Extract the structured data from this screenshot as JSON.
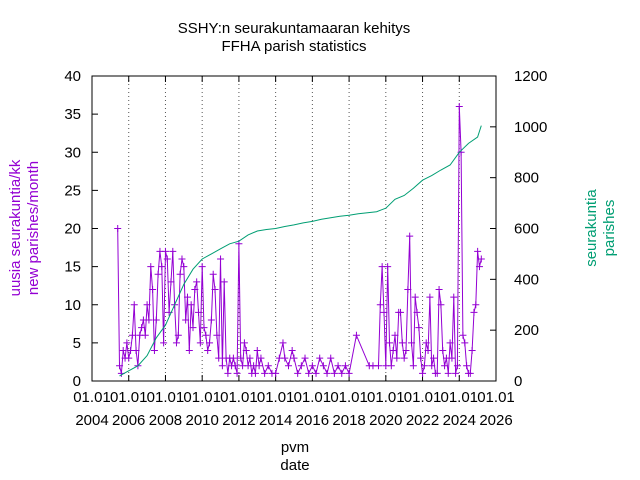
{
  "chart_data": {
    "type": "line",
    "title": "SSHY:n seurakuntamaaran kehitys",
    "subtitle": "FFHA parish statistics",
    "xlabel": [
      "pvm",
      "date"
    ],
    "ylabel_left": [
      "uusia seurakuntia/kk",
      "new parishes/month"
    ],
    "ylabel_right": [
      "seurakuntia",
      "parishes"
    ],
    "xlim": [
      2004.0,
      2026.0
    ],
    "ylim_left": [
      0,
      40
    ],
    "ylim_right": [
      0,
      1200
    ],
    "grid": "vertical dotted lines at major x ticks",
    "x_ticks": [
      {
        "x": 2004,
        "line1": "01.01",
        "line2": "2004"
      },
      {
        "x": 2006,
        "line1": "01.01",
        "line2": "2006"
      },
      {
        "x": 2008,
        "line1": "01.01",
        "line2": "2008"
      },
      {
        "x": 2010,
        "line1": "01.01",
        "line2": "2010"
      },
      {
        "x": 2012,
        "line1": "01.01",
        "line2": "2012"
      },
      {
        "x": 2014,
        "line1": "01.01",
        "line2": "2014"
      },
      {
        "x": 2016,
        "line1": "01.01",
        "line2": "2016"
      },
      {
        "x": 2018,
        "line1": "01.01",
        "line2": "2018"
      },
      {
        "x": 2020,
        "line1": "01.01",
        "line2": "2020"
      },
      {
        "x": 2022,
        "line1": "01.01",
        "line2": "2022"
      },
      {
        "x": 2024,
        "line1": "01.01",
        "line2": "2024"
      },
      {
        "x": 2026,
        "line1": "01.01",
        "line2": "2026"
      }
    ],
    "y_ticks_left": [
      0,
      5,
      10,
      15,
      20,
      25,
      30,
      35,
      40
    ],
    "y_ticks_right": [
      0,
      200,
      400,
      600,
      800,
      1000,
      1200
    ],
    "series": [
      {
        "axis": "left",
        "color": "#9400d3",
        "marker": "plus",
        "values": [
          [
            2005.4,
            20
          ],
          [
            2005.5,
            2
          ],
          [
            2005.6,
            1
          ],
          [
            2005.7,
            4
          ],
          [
            2005.8,
            3
          ],
          [
            2005.9,
            5
          ],
          [
            2006.0,
            3
          ],
          [
            2006.1,
            4
          ],
          [
            2006.2,
            6
          ],
          [
            2006.3,
            10
          ],
          [
            2006.4,
            4
          ],
          [
            2006.5,
            2
          ],
          [
            2006.6,
            6
          ],
          [
            2006.7,
            7
          ],
          [
            2006.8,
            8
          ],
          [
            2006.9,
            6
          ],
          [
            2007.0,
            10
          ],
          [
            2007.1,
            8
          ],
          [
            2007.2,
            15
          ],
          [
            2007.3,
            12
          ],
          [
            2007.4,
            4
          ],
          [
            2007.5,
            8
          ],
          [
            2007.6,
            14
          ],
          [
            2007.7,
            17
          ],
          [
            2007.8,
            15
          ],
          [
            2007.9,
            5
          ],
          [
            2008.0,
            17
          ],
          [
            2008.1,
            16
          ],
          [
            2008.2,
            9
          ],
          [
            2008.3,
            13
          ],
          [
            2008.4,
            17
          ],
          [
            2008.5,
            10
          ],
          [
            2008.6,
            5
          ],
          [
            2008.7,
            6
          ],
          [
            2008.8,
            14
          ],
          [
            2008.9,
            16
          ],
          [
            2009.0,
            15
          ],
          [
            2009.1,
            8
          ],
          [
            2009.2,
            11
          ],
          [
            2009.3,
            4
          ],
          [
            2009.4,
            10
          ],
          [
            2009.5,
            7
          ],
          [
            2009.6,
            12
          ],
          [
            2009.7,
            13
          ],
          [
            2009.8,
            9
          ],
          [
            2009.9,
            5
          ],
          [
            2010.0,
            15
          ],
          [
            2010.1,
            7
          ],
          [
            2010.2,
            6
          ],
          [
            2010.3,
            4
          ],
          [
            2010.4,
            5
          ],
          [
            2010.5,
            8
          ],
          [
            2010.6,
            14
          ],
          [
            2010.7,
            12
          ],
          [
            2010.8,
            6
          ],
          [
            2010.9,
            3
          ],
          [
            2011.0,
            16
          ],
          [
            2011.1,
            2
          ],
          [
            2011.2,
            13
          ],
          [
            2011.3,
            3
          ],
          [
            2011.4,
            1
          ],
          [
            2011.5,
            3
          ],
          [
            2011.6,
            2
          ],
          [
            2011.7,
            3
          ],
          [
            2011.8,
            2
          ],
          [
            2011.9,
            1
          ],
          [
            2012.0,
            18
          ],
          [
            2012.1,
            3
          ],
          [
            2012.2,
            2
          ],
          [
            2012.3,
            5
          ],
          [
            2012.4,
            4
          ],
          [
            2012.5,
            2
          ],
          [
            2012.6,
            3
          ],
          [
            2012.7,
            1
          ],
          [
            2012.8,
            2
          ],
          [
            2012.9,
            1
          ],
          [
            2013.0,
            4
          ],
          [
            2013.1,
            2
          ],
          [
            2013.2,
            3
          ],
          [
            2013.4,
            1
          ],
          [
            2013.6,
            2
          ],
          [
            2013.8,
            1
          ],
          [
            2014.0,
            1
          ],
          [
            2014.2,
            3
          ],
          [
            2014.4,
            5
          ],
          [
            2014.5,
            3
          ],
          [
            2014.7,
            2
          ],
          [
            2014.9,
            4
          ],
          [
            2015.0,
            3
          ],
          [
            2015.2,
            1
          ],
          [
            2015.4,
            2
          ],
          [
            2015.6,
            3
          ],
          [
            2015.8,
            1
          ],
          [
            2016.0,
            2
          ],
          [
            2016.2,
            1
          ],
          [
            2016.4,
            3
          ],
          [
            2016.6,
            2
          ],
          [
            2016.8,
            1
          ],
          [
            2017.0,
            3
          ],
          [
            2017.2,
            1
          ],
          [
            2017.4,
            2
          ],
          [
            2017.6,
            1
          ],
          [
            2017.8,
            2
          ],
          [
            2018.0,
            1
          ],
          [
            2018.4,
            6
          ],
          [
            2019.1,
            2
          ],
          [
            2019.3,
            2
          ],
          [
            2019.6,
            2
          ],
          [
            2019.7,
            10
          ],
          [
            2019.8,
            15
          ],
          [
            2019.9,
            9
          ],
          [
            2020.0,
            2
          ],
          [
            2020.1,
            15
          ],
          [
            2020.2,
            5
          ],
          [
            2020.3,
            2
          ],
          [
            2020.4,
            4
          ],
          [
            2020.5,
            6
          ],
          [
            2020.6,
            3
          ],
          [
            2020.7,
            9
          ],
          [
            2020.8,
            9
          ],
          [
            2020.9,
            5
          ],
          [
            2021.0,
            3
          ],
          [
            2021.1,
            4
          ],
          [
            2021.2,
            12
          ],
          [
            2021.3,
            19
          ],
          [
            2021.4,
            5
          ],
          [
            2021.5,
            2
          ],
          [
            2021.6,
            11
          ],
          [
            2021.7,
            9
          ],
          [
            2021.8,
            7
          ],
          [
            2021.9,
            3
          ],
          [
            2022.0,
            1
          ],
          [
            2022.1,
            2
          ],
          [
            2022.2,
            5
          ],
          [
            2022.3,
            4
          ],
          [
            2022.4,
            11
          ],
          [
            2022.5,
            2
          ],
          [
            2022.6,
            3
          ],
          [
            2022.7,
            1
          ],
          [
            2022.8,
            1
          ],
          [
            2022.9,
            12
          ],
          [
            2023.0,
            10
          ],
          [
            2023.1,
            4
          ],
          [
            2023.2,
            2
          ],
          [
            2023.3,
            3
          ],
          [
            2023.4,
            1
          ],
          [
            2023.5,
            5
          ],
          [
            2023.6,
            3
          ],
          [
            2023.7,
            11
          ],
          [
            2023.8,
            1
          ],
          [
            2023.9,
            2
          ],
          [
            2024.0,
            36
          ],
          [
            2024.1,
            30
          ],
          [
            2024.2,
            6
          ],
          [
            2024.3,
            5
          ],
          [
            2024.4,
            2
          ],
          [
            2024.5,
            1
          ],
          [
            2024.6,
            1
          ],
          [
            2024.7,
            4
          ],
          [
            2024.8,
            9
          ],
          [
            2024.9,
            10
          ],
          [
            2025.0,
            17
          ],
          [
            2025.1,
            15
          ],
          [
            2025.2,
            16
          ]
        ]
      },
      {
        "axis": "right",
        "color": "#009e73",
        "marker": "none",
        "values": [
          [
            2005.5,
            20
          ],
          [
            2006.0,
            40
          ],
          [
            2006.5,
            60
          ],
          [
            2007.0,
            100
          ],
          [
            2007.5,
            170
          ],
          [
            2008.0,
            220
          ],
          [
            2008.5,
            300
          ],
          [
            2009.0,
            380
          ],
          [
            2009.5,
            440
          ],
          [
            2010.0,
            480
          ],
          [
            2010.5,
            500
          ],
          [
            2011.0,
            520
          ],
          [
            2011.5,
            540
          ],
          [
            2012.0,
            550
          ],
          [
            2012.5,
            575
          ],
          [
            2013.0,
            590
          ],
          [
            2013.5,
            596
          ],
          [
            2014.0,
            600
          ],
          [
            2014.5,
            608
          ],
          [
            2015.0,
            614
          ],
          [
            2015.5,
            622
          ],
          [
            2016.0,
            628
          ],
          [
            2016.5,
            636
          ],
          [
            2017.0,
            642
          ],
          [
            2017.5,
            648
          ],
          [
            2018.0,
            652
          ],
          [
            2018.5,
            658
          ],
          [
            2019.0,
            662
          ],
          [
            2019.5,
            666
          ],
          [
            2020.0,
            680
          ],
          [
            2020.5,
            715
          ],
          [
            2021.0,
            730
          ],
          [
            2021.5,
            758
          ],
          [
            2022.0,
            790
          ],
          [
            2022.5,
            808
          ],
          [
            2023.0,
            830
          ],
          [
            2023.5,
            850
          ],
          [
            2024.0,
            900
          ],
          [
            2024.5,
            935
          ],
          [
            2025.0,
            960
          ],
          [
            2025.2,
            1005
          ]
        ]
      }
    ]
  }
}
